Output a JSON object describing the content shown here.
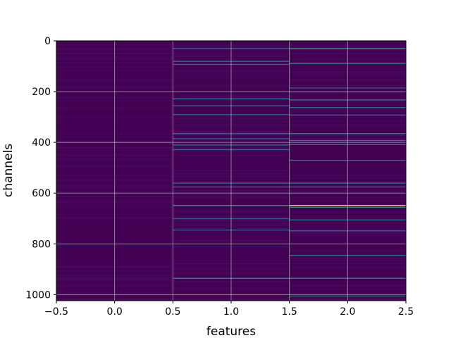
{
  "chart_data": {
    "type": "heatmap",
    "title": "",
    "xlabel": "features",
    "ylabel": "channels",
    "xlim": [
      -0.5,
      2.5
    ],
    "ylim": [
      1024,
      0
    ],
    "x_ticks": [
      -0.5,
      0.0,
      0.5,
      1.0,
      1.5,
      2.0,
      2.5
    ],
    "x_tick_labels": [
      "−0.5",
      "0.0",
      "0.5",
      "1.0",
      "1.5",
      "2.0",
      "2.5"
    ],
    "y_ticks": [
      0,
      200,
      400,
      600,
      800,
      1000
    ],
    "y_tick_labels": [
      "0",
      "200",
      "400",
      "600",
      "800",
      "1000"
    ],
    "grid": true,
    "colormap": "viridis",
    "background_color": "#440154",
    "columns": [
      {
        "feature": 0,
        "highlights": []
      },
      {
        "feature": 1,
        "highlights": [
          {
            "channel": 30,
            "level": 0.32
          },
          {
            "channel": 80,
            "level": 0.38
          },
          {
            "channel": 92,
            "level": 0.3
          },
          {
            "channel": 228,
            "level": 0.42
          },
          {
            "channel": 255,
            "level": 0.3
          },
          {
            "channel": 290,
            "level": 0.32
          },
          {
            "channel": 365,
            "level": 0.4
          },
          {
            "channel": 385,
            "level": 0.32
          },
          {
            "channel": 410,
            "level": 0.35
          },
          {
            "channel": 428,
            "level": 0.3
          },
          {
            "channel": 560,
            "level": 0.34
          },
          {
            "channel": 575,
            "level": 0.3
          },
          {
            "channel": 648,
            "level": 0.52
          },
          {
            "channel": 700,
            "level": 0.28
          },
          {
            "channel": 745,
            "level": 0.26
          },
          {
            "channel": 935,
            "level": 0.45
          }
        ]
      },
      {
        "feature": 2,
        "highlights": [
          {
            "channel": 30,
            "level": 0.55
          },
          {
            "channel": 88,
            "level": 0.48
          },
          {
            "channel": 185,
            "level": 0.28
          },
          {
            "channel": 232,
            "level": 0.42
          },
          {
            "channel": 262,
            "level": 0.35
          },
          {
            "channel": 292,
            "level": 0.3
          },
          {
            "channel": 365,
            "level": 0.45
          },
          {
            "channel": 392,
            "level": 0.42
          },
          {
            "channel": 408,
            "level": 0.36
          },
          {
            "channel": 470,
            "level": 0.4
          },
          {
            "channel": 560,
            "level": 0.4
          },
          {
            "channel": 575,
            "level": 0.3
          },
          {
            "channel": 648,
            "level": 0.98
          },
          {
            "channel": 655,
            "level": 0.45
          },
          {
            "channel": 705,
            "level": 0.4
          },
          {
            "channel": 748,
            "level": 0.3
          },
          {
            "channel": 845,
            "level": 0.38
          },
          {
            "channel": 935,
            "level": 0.4
          },
          {
            "channel": 1005,
            "level": 0.3
          }
        ]
      }
    ]
  }
}
